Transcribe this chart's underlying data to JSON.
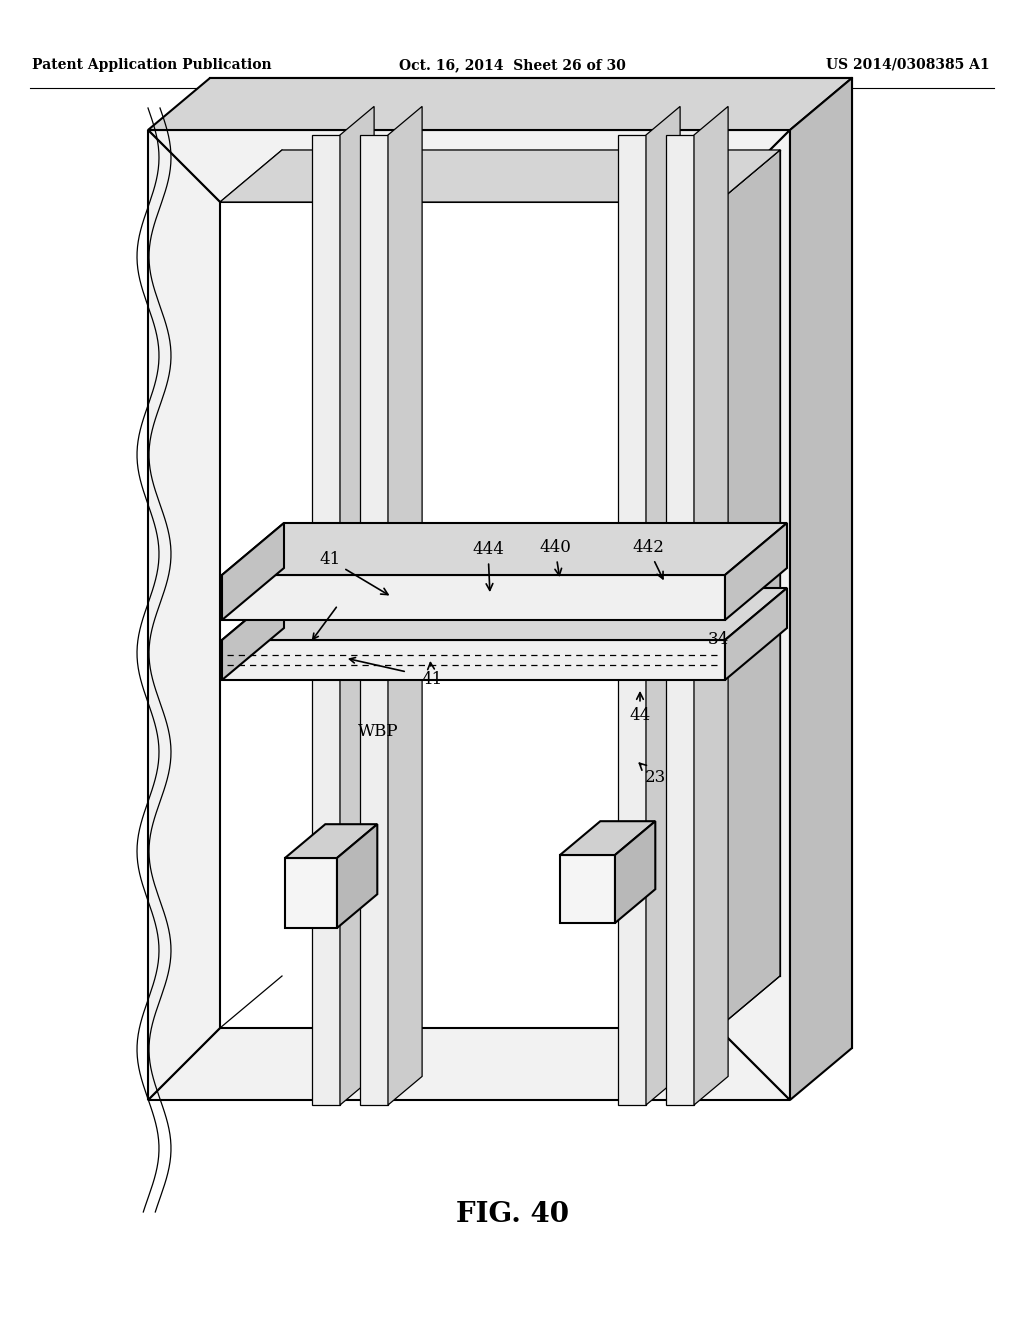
{
  "bg_color": "#ffffff",
  "line_color": "#000000",
  "fill_light": "#f0f0f0",
  "fill_medium": "#d8d8d8",
  "fill_dark": "#c0c0c0",
  "header_left": "Patent Application Publication",
  "header_mid": "Oct. 16, 2014  Sheet 26 of 30",
  "header_right": "US 2014/0308385 A1",
  "fig_label": "FIG. 40"
}
